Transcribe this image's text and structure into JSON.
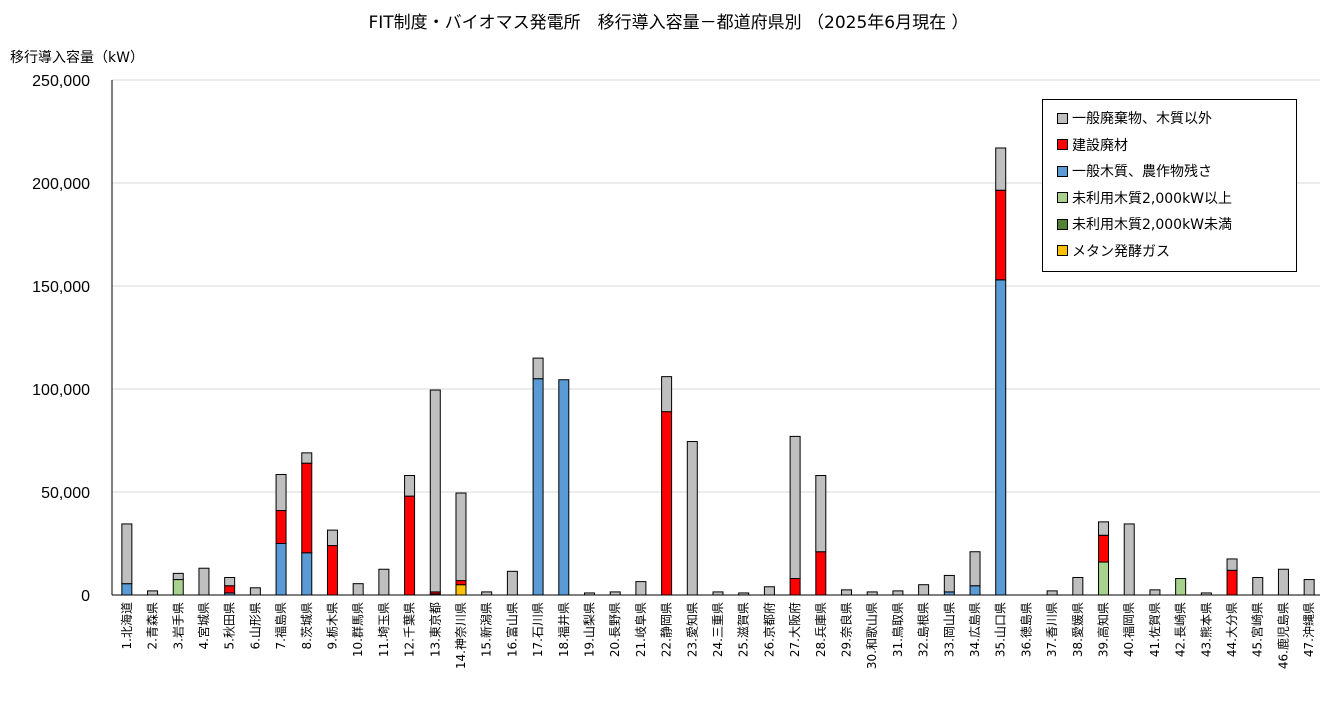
{
  "chart_data": {
    "type": "bar",
    "stacked": true,
    "title": "FIT制度・バイオマス発電所　移行導入容量－都道府県別 （2025年6月現在 ）",
    "ylabel": "移行導入容量（kW）",
    "ylim": [
      0,
      250000
    ],
    "yticks": [
      0,
      50000,
      100000,
      150000,
      200000,
      250000
    ],
    "ytick_labels": [
      "0",
      "50,000",
      "100,000",
      "150,000",
      "200,000",
      "250,000"
    ],
    "grid": true,
    "legend_position": "top-right",
    "categories": [
      "1.北海道",
      "2.青森県",
      "3.岩手県",
      "4.宮城県",
      "5.秋田県",
      "6.山形県",
      "7.福島県",
      "8.茨城県",
      "9.栃木県",
      "10.群馬県",
      "11.埼玉県",
      "12.千葉県",
      "13.東京都",
      "14.神奈川県",
      "15.新潟県",
      "16.富山県",
      "17.石川県",
      "18.福井県",
      "19.山梨県",
      "20.長野県",
      "21.岐阜県",
      "22.静岡県",
      "23.愛知県",
      "24.三重県",
      "25.滋賀県",
      "26.京都府",
      "27.大阪府",
      "28.兵庫県",
      "29.奈良県",
      "30.和歌山県",
      "31.鳥取県",
      "32.島根県",
      "33.岡山県",
      "34.広島県",
      "35.山口県",
      "36.徳島県",
      "37.香川県",
      "38.愛媛県",
      "39.高知県",
      "40.福岡県",
      "41.佐賀県",
      "42.長崎県",
      "43.熊本県",
      "44.大分県",
      "45.宮崎県",
      "46.鹿児島県",
      "47.沖縄県"
    ],
    "series": [
      {
        "name": "メタン発酵ガス",
        "color": "#ffc000",
        "values": [
          0,
          0,
          0,
          0,
          0,
          0,
          0,
          0,
          0,
          0,
          0,
          0,
          500,
          5000,
          0,
          0,
          0,
          0,
          0,
          0,
          0,
          0,
          0,
          0,
          0,
          0,
          0,
          0,
          0,
          0,
          0,
          0,
          0,
          0,
          0,
          0,
          0,
          0,
          0,
          0,
          0,
          0,
          0,
          0,
          0,
          0,
          0
        ]
      },
      {
        "name": "未利用木質2,000kW未満",
        "color": "#548235",
        "values": [
          0,
          0,
          0,
          0,
          0,
          0,
          0,
          0,
          0,
          0,
          0,
          0,
          0,
          0,
          0,
          0,
          0,
          0,
          0,
          0,
          0,
          0,
          0,
          0,
          0,
          0,
          0,
          0,
          0,
          0,
          0,
          0,
          0,
          0,
          0,
          0,
          0,
          0,
          0,
          0,
          0,
          0,
          0,
          0,
          0,
          0,
          0
        ]
      },
      {
        "name": "未利用木質2,000kW以上",
        "color": "#a9d18e",
        "values": [
          0,
          0,
          7500,
          0,
          0,
          0,
          0,
          0,
          0,
          0,
          0,
          0,
          0,
          0,
          0,
          0,
          0,
          0,
          0,
          0,
          0,
          0,
          0,
          0,
          0,
          0,
          0,
          0,
          0,
          0,
          0,
          0,
          0,
          0,
          0,
          0,
          0,
          0,
          16000,
          0,
          0,
          8000,
          0,
          0,
          0,
          0,
          0
        ]
      },
      {
        "name": "一般木質、農作物残さ",
        "color": "#5b9bd5",
        "values": [
          5500,
          0,
          0,
          0,
          1000,
          0,
          25000,
          20500,
          0,
          0,
          0,
          0,
          0,
          0,
          0,
          0,
          105000,
          104500,
          0,
          0,
          0,
          0,
          0,
          0,
          0,
          0,
          0,
          0,
          0,
          0,
          0,
          0,
          1500,
          4500,
          153000,
          0,
          0,
          0,
          0,
          0,
          0,
          0,
          0,
          0,
          0,
          0,
          0
        ]
      },
      {
        "name": "建設廃材",
        "color": "#ff0000",
        "values": [
          0,
          0,
          0,
          0,
          3500,
          0,
          16000,
          43500,
          24000,
          0,
          0,
          48000,
          1000,
          2000,
          0,
          0,
          0,
          0,
          0,
          0,
          0,
          89000,
          0,
          0,
          0,
          0,
          8000,
          21000,
          0,
          0,
          0,
          0,
          0,
          0,
          43500,
          0,
          0,
          0,
          13000,
          0,
          0,
          0,
          0,
          12000,
          0,
          0,
          0
        ]
      },
      {
        "name": "一般廃棄物、木質以外",
        "color": "#bfbfbf",
        "values": [
          29000,
          2000,
          3000,
          13000,
          4000,
          3500,
          17500,
          5000,
          7500,
          5500,
          12500,
          10000,
          98000,
          42500,
          1500,
          11500,
          10000,
          0,
          1000,
          1500,
          6500,
          17000,
          74500,
          1500,
          1000,
          4000,
          69000,
          37000,
          2500,
          1500,
          2000,
          5000,
          8000,
          16500,
          20500,
          0,
          2000,
          8500,
          6500,
          34500,
          2500,
          0,
          1000,
          5500,
          8500,
          12500,
          7500
        ]
      }
    ]
  },
  "legend": {
    "items": [
      {
        "label": "一般廃棄物、木質以外",
        "color": "#bfbfbf"
      },
      {
        "label": "建設廃材",
        "color": "#ff0000"
      },
      {
        "label": "一般木質、農作物残さ",
        "color": "#5b9bd5"
      },
      {
        "label": "未利用木質2,000kW以上",
        "color": "#a9d18e"
      },
      {
        "label": "未利用木質2,000kW未満",
        "color": "#548235"
      },
      {
        "label": "メタン発酵ガス",
        "color": "#ffc000"
      }
    ]
  }
}
